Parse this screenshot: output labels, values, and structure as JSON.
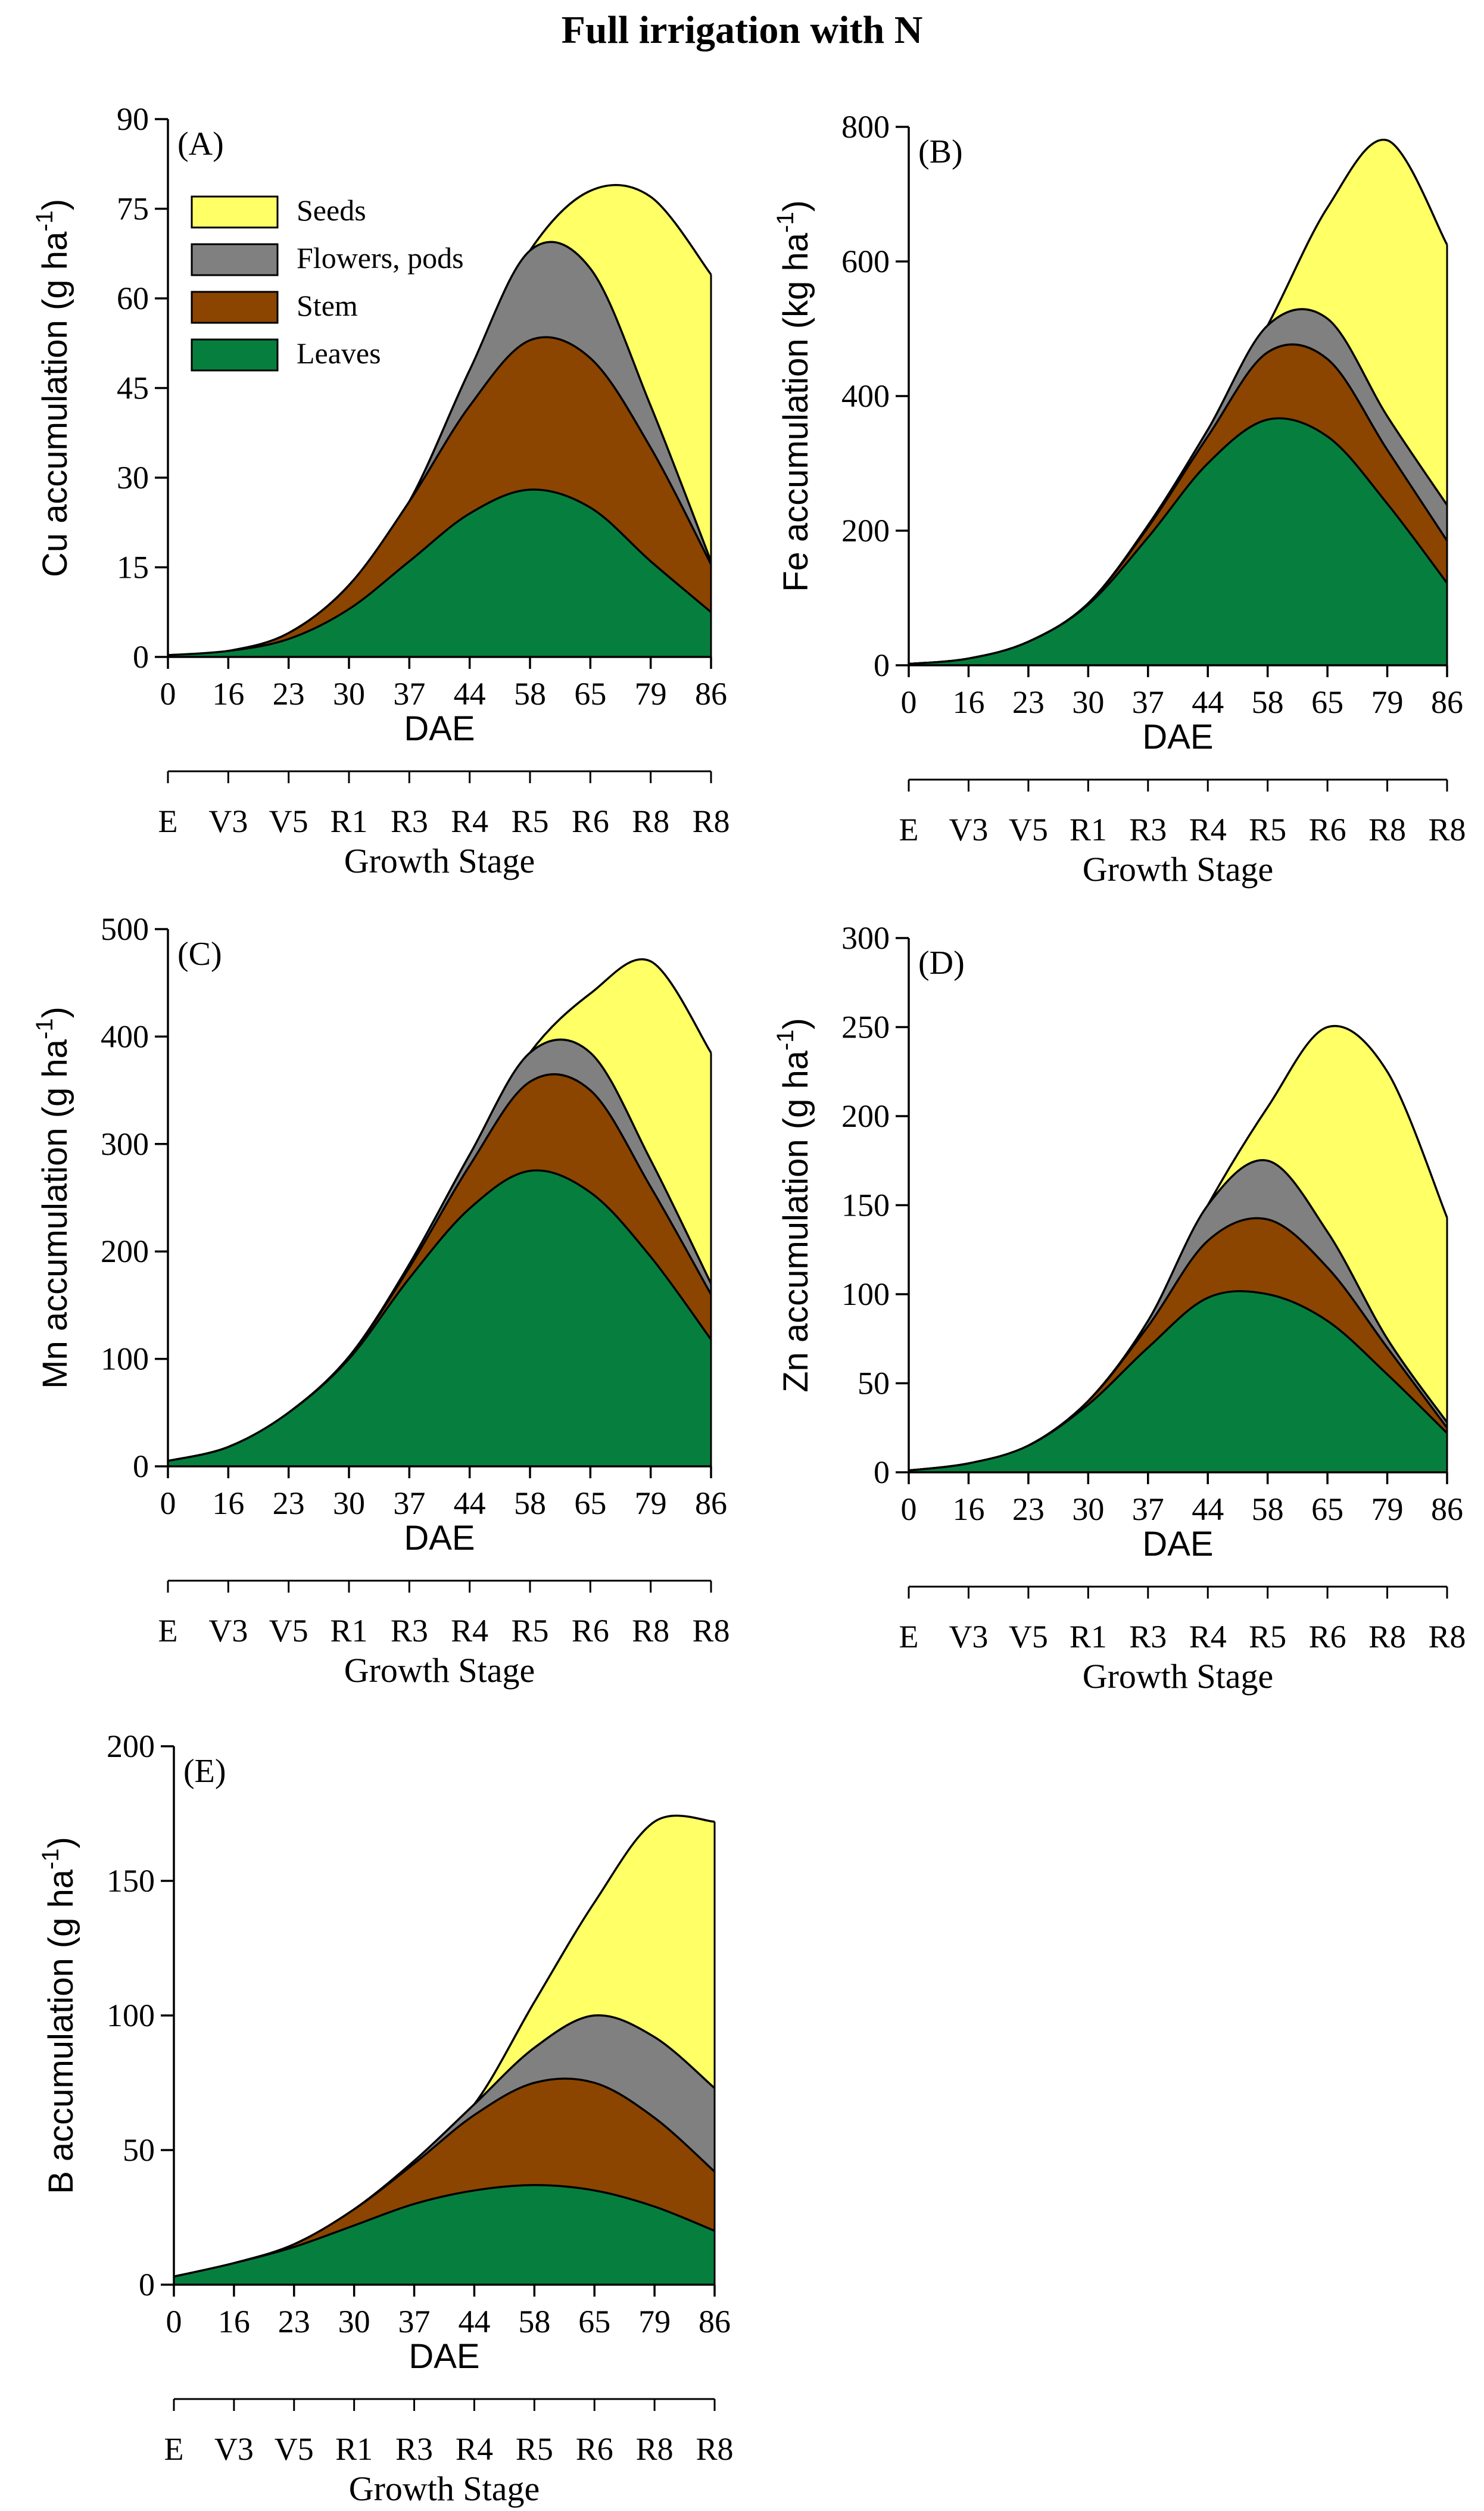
{
  "figure_title": "Full irrigation with N",
  "colors": {
    "seeds": "#ffff66",
    "flowers_pods": "#808080",
    "stem": "#8b4500",
    "leaves": "#067f3e"
  },
  "legend": {
    "seeds": "Seeds",
    "flowers_pods": "Flowers, pods",
    "stem": "Stem",
    "leaves": "Leaves"
  },
  "chart_data": [
    {
      "type": "area",
      "panel": "(A)",
      "ylabel_main": "Cu accumulation (g ha",
      "ylabel_sup": "-1",
      "ylabel_close": ")",
      "xlabel": "DAE",
      "stage_label": "Growth Stage",
      "ylim": [
        0,
        90
      ],
      "yticks": [
        "0",
        "15",
        "30",
        "45",
        "60",
        "75",
        "90"
      ],
      "categories": [
        "0",
        "16",
        "23",
        "30",
        "37",
        "44",
        "58",
        "65",
        "79",
        "86"
      ],
      "stages": [
        "E",
        "V3",
        "V5",
        "R1",
        "R3",
        "R4",
        "R5",
        "R6",
        "R8",
        "R8"
      ],
      "series": [
        {
          "name": "Leaves",
          "key": "leaves",
          "values": [
            0.3,
            1,
            3,
            8,
            16,
            24,
            28,
            25,
            16,
            7.5
          ]
        },
        {
          "name": "Stem",
          "key": "stem",
          "values": [
            0.3,
            1,
            4,
            12,
            26,
            42,
            53,
            50,
            35,
            15.5
          ]
        },
        {
          "name": "Flowers, pods",
          "key": "flowers_pods",
          "values": [
            0.3,
            1,
            4,
            12,
            26,
            48,
            68,
            65,
            42,
            16
          ]
        },
        {
          "name": "Seeds",
          "key": "seeds",
          "values": [
            0.3,
            1,
            4,
            12,
            26,
            48,
            68,
            78,
            77,
            64
          ]
        }
      ]
    },
    {
      "type": "area",
      "panel": "(B)",
      "ylabel_main": "Fe  accumulation (kg ha",
      "ylabel_sup": "-1",
      "ylabel_close": ")",
      "xlabel": "DAE",
      "stage_label": "Growth Stage",
      "ylim": [
        0,
        800
      ],
      "yticks": [
        "0",
        "200",
        "400",
        "600",
        "800"
      ],
      "categories": [
        "0",
        "16",
        "23",
        "30",
        "37",
        "44",
        "58",
        "65",
        "79",
        "86"
      ],
      "stages": [
        "E",
        "V3",
        "V5",
        "R1",
        "R3",
        "R4",
        "R5",
        "R6",
        "R8",
        "R8"
      ],
      "series": [
        {
          "name": "Leaves",
          "key": "leaves",
          "values": [
            2,
            10,
            35,
            90,
            190,
            300,
            365,
            340,
            240,
            122
          ]
        },
        {
          "name": "Stem",
          "key": "stem",
          "values": [
            2,
            10,
            35,
            92,
            205,
            340,
            465,
            455,
            320,
            185
          ]
        },
        {
          "name": "Flowers, pods",
          "key": "flowers_pods",
          "values": [
            2,
            10,
            35,
            92,
            208,
            350,
            505,
            515,
            370,
            238
          ]
        },
        {
          "name": "Seeds",
          "key": "seeds",
          "values": [
            2,
            10,
            35,
            92,
            208,
            350,
            505,
            680,
            780,
            625
          ]
        }
      ]
    },
    {
      "type": "area",
      "panel": "(C)",
      "ylabel_main": "Mn  accumulation (g ha",
      "ylabel_sup": "-1",
      "ylabel_close": ")",
      "xlabel": "DAE",
      "stage_label": "Growth Stage",
      "ylim": [
        0,
        500
      ],
      "yticks": [
        "0",
        "100",
        "200",
        "300",
        "400",
        "500"
      ],
      "categories": [
        "0",
        "16",
        "23",
        "30",
        "37",
        "44",
        "58",
        "65",
        "79",
        "86"
      ],
      "stages": [
        "E",
        "V3",
        "V5",
        "R1",
        "R3",
        "R4",
        "R5",
        "R6",
        "R8",
        "R8"
      ],
      "series": [
        {
          "name": "Leaves",
          "key": "leaves",
          "values": [
            5,
            18,
            50,
            100,
            175,
            240,
            275,
            255,
            195,
            118
          ]
        },
        {
          "name": "Stem",
          "key": "stem",
          "values": [
            5,
            18,
            50,
            102,
            185,
            280,
            358,
            350,
            260,
            160
          ]
        },
        {
          "name": "Flowers, pods",
          "key": "flowers_pods",
          "values": [
            5,
            18,
            50,
            102,
            188,
            290,
            385,
            385,
            285,
            170
          ]
        },
        {
          "name": "Seeds",
          "key": "seeds",
          "values": [
            5,
            18,
            50,
            102,
            188,
            290,
            385,
            440,
            470,
            385
          ]
        }
      ]
    },
    {
      "type": "area",
      "panel": "(D)",
      "ylabel_main": "Zn  accumulation (g ha",
      "ylabel_sup": "-1",
      "ylabel_close": ")",
      "xlabel": "DAE",
      "stage_label": "Growth Stage",
      "ylim": [
        0,
        300
      ],
      "yticks": [
        "0",
        "50",
        "100",
        "150",
        "200",
        "250",
        "300"
      ],
      "categories": [
        "0",
        "16",
        "23",
        "30",
        "37",
        "44",
        "58",
        "65",
        "79",
        "86"
      ],
      "stages": [
        "E",
        "V3",
        "V5",
        "R1",
        "R3",
        "R4",
        "R5",
        "R6",
        "R8",
        "R8"
      ],
      "series": [
        {
          "name": "Leaves",
          "key": "leaves",
          "values": [
            1,
            5,
            15,
            38,
            70,
            98,
            100,
            85,
            55,
            22
          ]
        },
        {
          "name": "Stem",
          "key": "stem",
          "values": [
            1,
            5,
            15,
            40,
            82,
            130,
            142,
            115,
            70,
            25
          ]
        },
        {
          "name": "Flowers, pods",
          "key": "flowers_pods",
          "values": [
            1,
            5,
            15,
            40,
            85,
            150,
            175,
            135,
            75,
            28
          ]
        },
        {
          "name": "Seeds",
          "key": "seeds",
          "values": [
            1,
            5,
            15,
            40,
            85,
            150,
            205,
            250,
            225,
            143
          ]
        }
      ]
    },
    {
      "type": "area",
      "panel": "(E)",
      "ylabel_main": "B  accumulation (g ha",
      "ylabel_sup": "-1",
      "ylabel_close": ")",
      "xlabel": "DAE",
      "stage_label": "Growth Stage",
      "ylim": [
        0,
        200
      ],
      "yticks": [
        "0",
        "50",
        "100",
        "150",
        "200"
      ],
      "categories": [
        "0",
        "16",
        "23",
        "30",
        "37",
        "44",
        "58",
        "65",
        "79",
        "86"
      ],
      "stages": [
        "E",
        "V3",
        "V5",
        "R1",
        "R3",
        "R4",
        "R5",
        "R6",
        "R8",
        "R8"
      ],
      "series": [
        {
          "name": "Leaves",
          "key": "leaves",
          "values": [
            3,
            8,
            14,
            22,
            30,
            35,
            37,
            35,
            29,
            20
          ]
        },
        {
          "name": "Stem",
          "key": "stem",
          "values": [
            3,
            8,
            15,
            28,
            45,
            63,
            75,
            75,
            62,
            42
          ]
        },
        {
          "name": "Flowers, pods",
          "key": "flowers_pods",
          "values": [
            3,
            8,
            15,
            28,
            46,
            67,
            88,
            100,
            92,
            73
          ]
        },
        {
          "name": "Seeds",
          "key": "seeds",
          "values": [
            3,
            8,
            15,
            28,
            46,
            67,
            105,
            142,
            172,
            172
          ]
        }
      ]
    }
  ]
}
